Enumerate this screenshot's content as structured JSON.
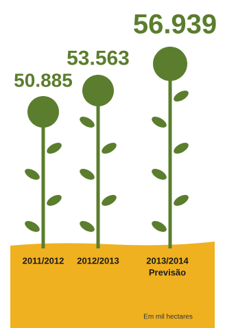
{
  "chart_data": {
    "type": "pictogram",
    "categories": [
      "2011/2012",
      "2012/2013",
      "2013/2014"
    ],
    "values": [
      50885,
      53563,
      56939
    ],
    "value_labels": [
      "50.885",
      "53.563",
      "56.939"
    ],
    "forecast_label": "Previsão",
    "unit_note": "Em mil hectares",
    "color": "#5b7d2e",
    "ground_color": "#f0b121"
  }
}
